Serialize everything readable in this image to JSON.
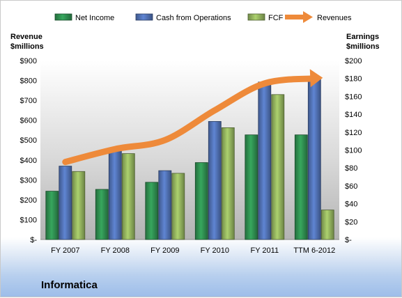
{
  "chart_data": {
    "type": "bar",
    "company": "Informatica",
    "categories": [
      "FY 2007",
      "FY 2008",
      "FY 2009",
      "FY 2010",
      "FY 2011",
      "TTM 6-2012"
    ],
    "left_axis": {
      "title_line1": "Revenue",
      "title_line2": "$millions",
      "ylim": [
        0,
        900
      ],
      "ticks": [
        0,
        100,
        200,
        300,
        400,
        500,
        600,
        700,
        800,
        900
      ],
      "tick_labels": [
        "$-",
        "$100",
        "$200",
        "$300",
        "$400",
        "$500",
        "$600",
        "$700",
        "$800",
        "$900"
      ]
    },
    "right_axis": {
      "title_line1": "Earnings",
      "title_line2": "$millions",
      "ylim": [
        0,
        200
      ],
      "ticks": [
        0,
        20,
        40,
        60,
        80,
        100,
        120,
        140,
        160,
        180,
        200
      ],
      "tick_labels": [
        "$-",
        "$20",
        "$40",
        "$60",
        "$80",
        "$100",
        "$120",
        "$140",
        "$160",
        "$180",
        "$200"
      ]
    },
    "series": [
      {
        "name": "Net Income",
        "kind": "bar",
        "axis": "right",
        "color": "#2e8b4e",
        "values": [
          54,
          56,
          64,
          86,
          117,
          117
        ]
      },
      {
        "name": "Cash from Operations",
        "kind": "bar",
        "axis": "right",
        "color": "#4f6fb0",
        "values": [
          82,
          100,
          77,
          132,
          176,
          180
        ]
      },
      {
        "name": "FCF",
        "kind": "bar",
        "axis": "right",
        "color": "#8fae5c",
        "values": [
          76,
          96,
          74,
          125,
          162,
          33
        ]
      },
      {
        "name": "Revenues",
        "kind": "arrow-line",
        "axis": "left",
        "color": "#ee8a3a",
        "values": [
          390,
          455,
          500,
          650,
          785,
          810
        ]
      }
    ],
    "legend_position": "top",
    "grid": false
  }
}
